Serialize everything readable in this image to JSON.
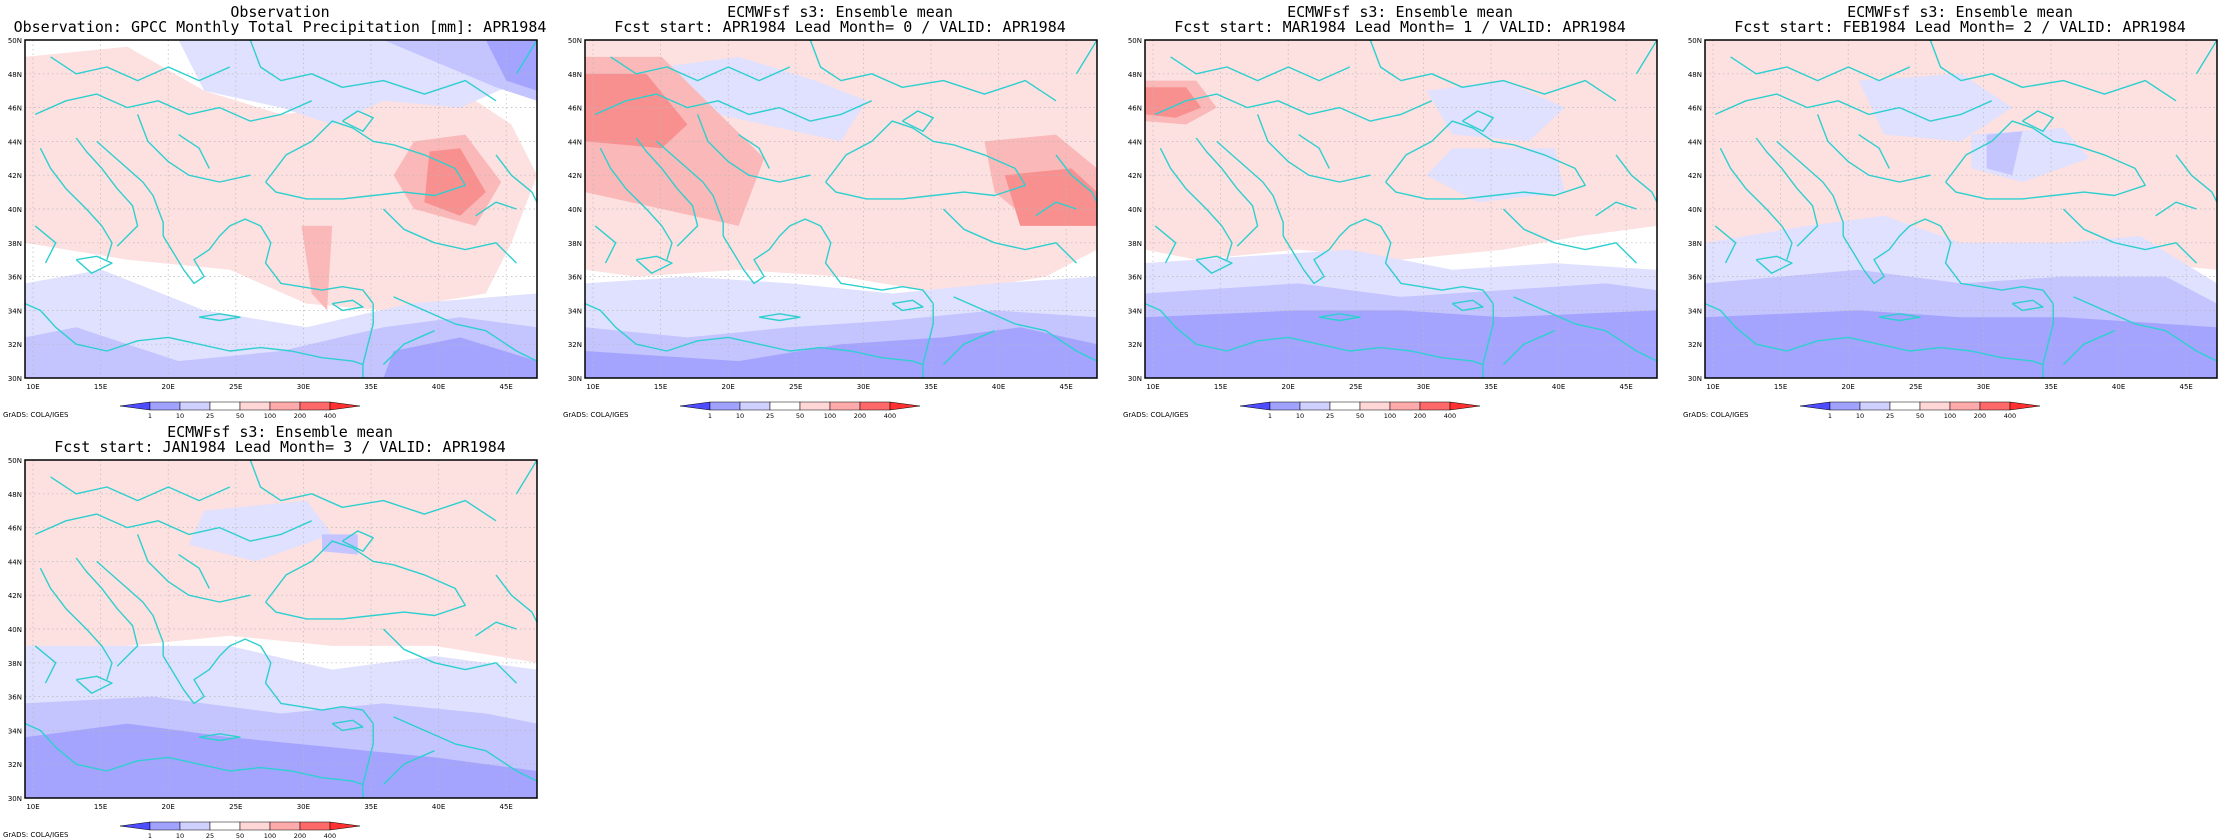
{
  "panels": [
    {
      "title1": "Observation",
      "title2": "Observation: GPCC Monthly Total Precipitation [mm]: APR1984",
      "variant": "obs"
    },
    {
      "title1": "ECMWFsf s3: Ensemble mean",
      "title2": "Fcst start: APR1984  Lead Month= 0 / VALID: APR1984",
      "variant": "lead0"
    },
    {
      "title1": "ECMWFsf s3: Ensemble mean",
      "title2": "Fcst start: MAR1984  Lead Month= 1 / VALID: APR1984",
      "variant": "lead1"
    },
    {
      "title1": "ECMWFsf s3: Ensemble mean",
      "title2": "Fcst start: FEB1984  Lead Month= 2 / VALID: APR1984",
      "variant": "lead2"
    },
    {
      "title1": "ECMWFsf s3: Ensemble mean",
      "title2": "Fcst start: JAN1984  Lead Month= 3 / VALID: APR1984",
      "variant": "lead3"
    }
  ],
  "lat_labels": [
    "50N",
    "48N",
    "46N",
    "44N",
    "42N",
    "40N",
    "38N",
    "36N",
    "34N",
    "32N",
    "30N"
  ],
  "lon_labels": [
    "10E",
    "15E",
    "20E",
    "25E",
    "30E",
    "35E",
    "40E",
    "45E"
  ],
  "colorbar": {
    "labels": [
      "1",
      "10",
      "25",
      "50",
      "100",
      "200",
      "400"
    ],
    "colors": [
      "#4d4dff",
      "#a1a1ff",
      "#d0d0ff",
      "#ffffff",
      "#ffd7d7",
      "#ffaaaa",
      "#ff6969",
      "#ff3030"
    ]
  },
  "credit": "GrADS: COLA/IGES",
  "colors": {
    "coast": "#2ecfcf",
    "grid": "#b8b8b8",
    "blue_light": "#e0e0ff",
    "blue_mid": "#c4c4ff",
    "blue_dark": "#a4a4ff",
    "red_light": "#fde0e0",
    "red_mid": "#fbb8b8",
    "red_dark": "#f99090"
  }
}
